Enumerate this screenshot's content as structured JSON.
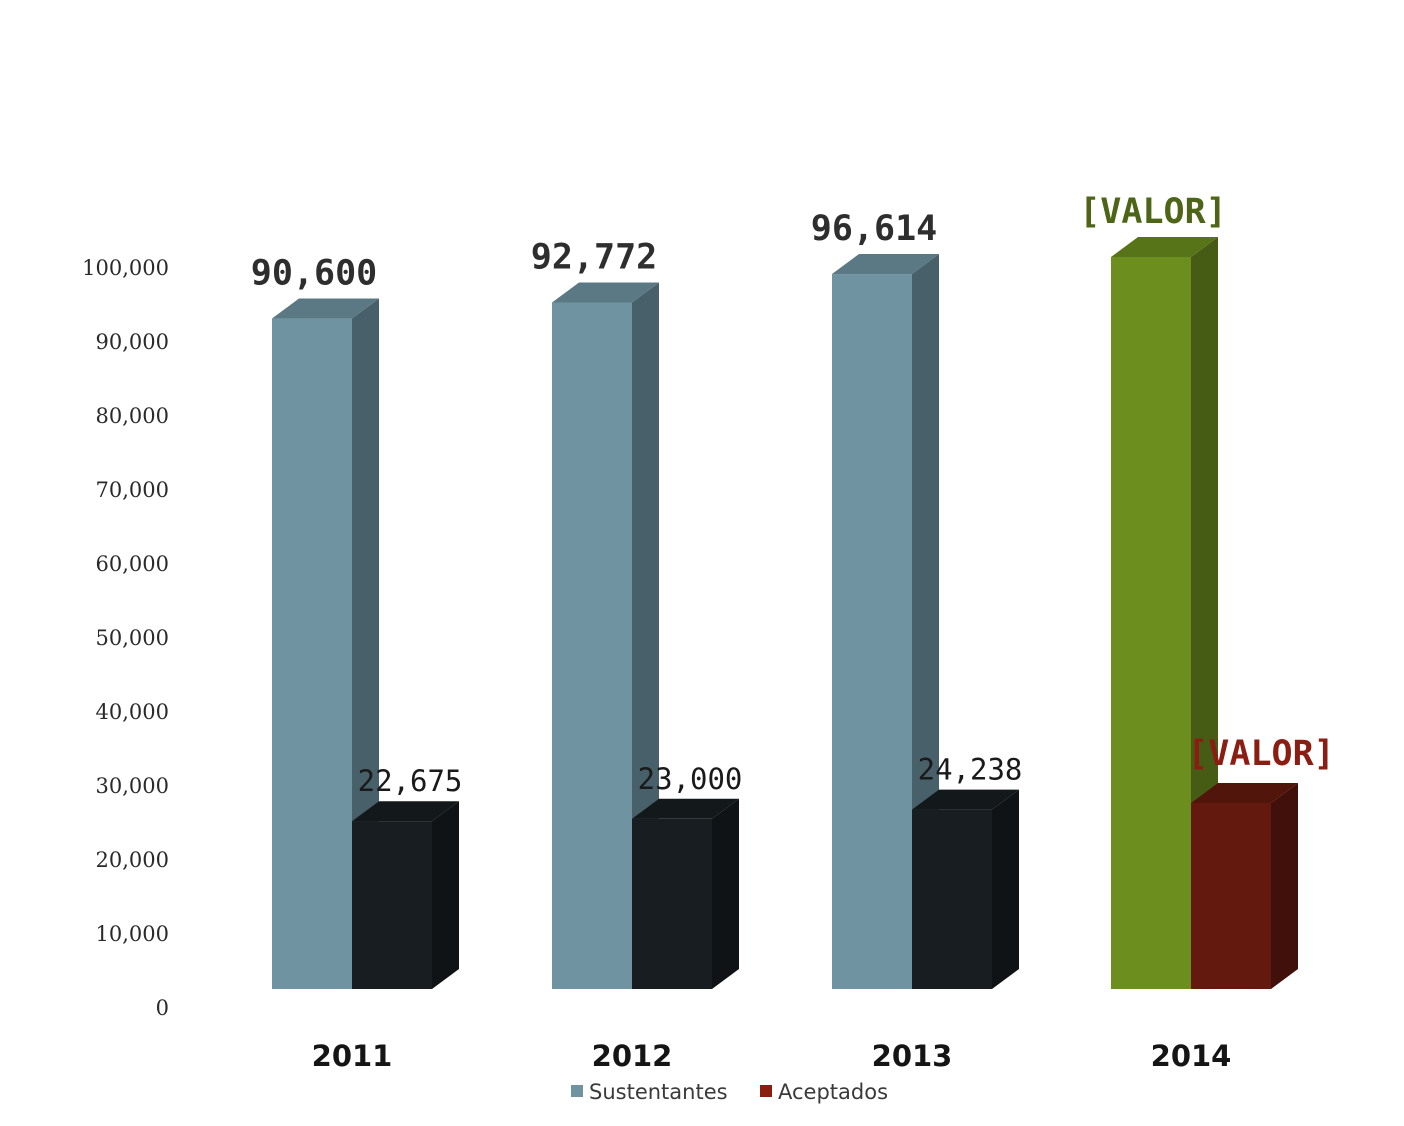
{
  "chart_data": {
    "type": "bar",
    "categories": [
      "2011",
      "2012",
      "2013",
      "2014"
    ],
    "series": [
      {
        "name": "Sustentantes",
        "values": [
          90600,
          92772,
          96614,
          null
        ],
        "labels": [
          "90,600",
          "92,772",
          "96,614",
          "[VALOR]"
        ]
      },
      {
        "name": "Aceptados",
        "values": [
          22675,
          23000,
          24238,
          null
        ],
        "labels": [
          "22,675",
          "23,000",
          "24,238",
          "[VALOR]"
        ]
      }
    ],
    "ylim": [
      0,
      100000
    ],
    "yticks": [
      "0",
      "10,000",
      "20,000",
      "30,000",
      "40,000",
      "50,000",
      "60,000",
      "70,000",
      "80,000",
      "90,000",
      "100,000"
    ],
    "legend": "bottom",
    "grid": false,
    "colors": {
      "sustentantes": "#6f93a1",
      "aceptados": "#171d21",
      "sustentantes_highlight": "#6b8e1e",
      "aceptados_highlight": "#64190f",
      "highlight_label_1": "#4d6516",
      "highlight_label_2": "#8b1e12"
    }
  }
}
